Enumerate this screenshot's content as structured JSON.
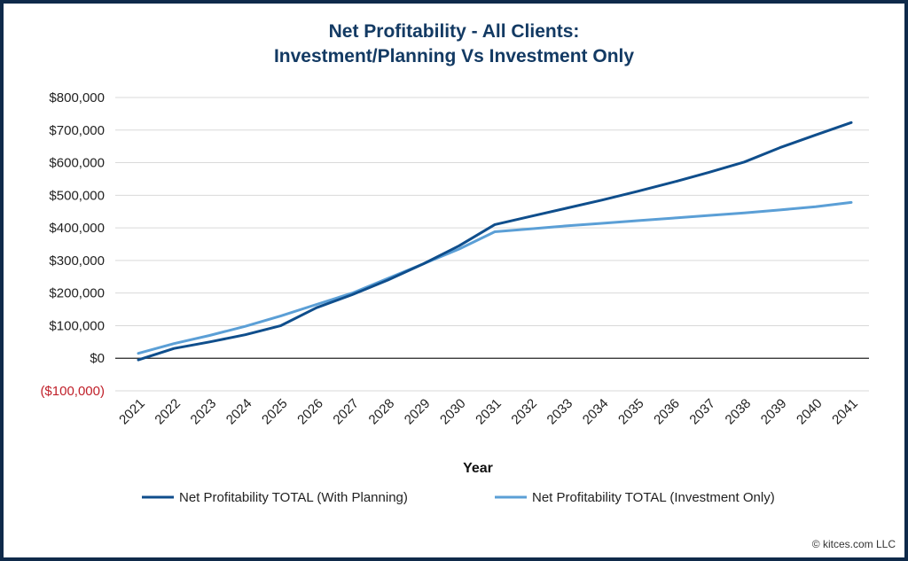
{
  "chart_data": {
    "type": "line",
    "title": "Net Profitability - All Clients:",
    "subtitle": "Investment/Planning Vs Investment Only",
    "xlabel": "Year",
    "ylabel": "",
    "x": [
      "2021",
      "2022",
      "2023",
      "2024",
      "2025",
      "2026",
      "2027",
      "2028",
      "2029",
      "2030",
      "2031",
      "2032",
      "2033",
      "2034",
      "2035",
      "2036",
      "2037",
      "2038",
      "2039",
      "2040",
      "2041"
    ],
    "ylim": [
      -100000,
      800000
    ],
    "yticks": [
      800000,
      700000,
      600000,
      500000,
      400000,
      300000,
      200000,
      100000,
      0,
      -100000
    ],
    "ytick_labels": [
      "$800,000",
      "$700,000",
      "$600,000",
      "$500,000",
      "$400,000",
      "$300,000",
      "$200,000",
      "$100,000",
      "$0",
      "($100,000)"
    ],
    "grid": true,
    "legend_position": "bottom",
    "series": [
      {
        "name": "Net Profitability TOTAL (With Planning)",
        "color": "#0f4e8c",
        "values": [
          -5000,
          30000,
          50000,
          72000,
          100000,
          155000,
          195000,
          240000,
          290000,
          345000,
          410000,
          435000,
          460000,
          485000,
          512000,
          540000,
          570000,
          602000,
          646000,
          685000,
          723000
        ]
      },
      {
        "name": "Net Profitability TOTAL (Investment Only)",
        "color": "#5b9fd6",
        "values": [
          15000,
          45000,
          70000,
          98000,
          130000,
          165000,
          200000,
          245000,
          290000,
          335000,
          388000,
          397000,
          406000,
          414000,
          422000,
          430000,
          438000,
          446000,
          455000,
          465000,
          478000
        ]
      }
    ]
  },
  "footer": {
    "credit": "© kitces.com LLC"
  }
}
